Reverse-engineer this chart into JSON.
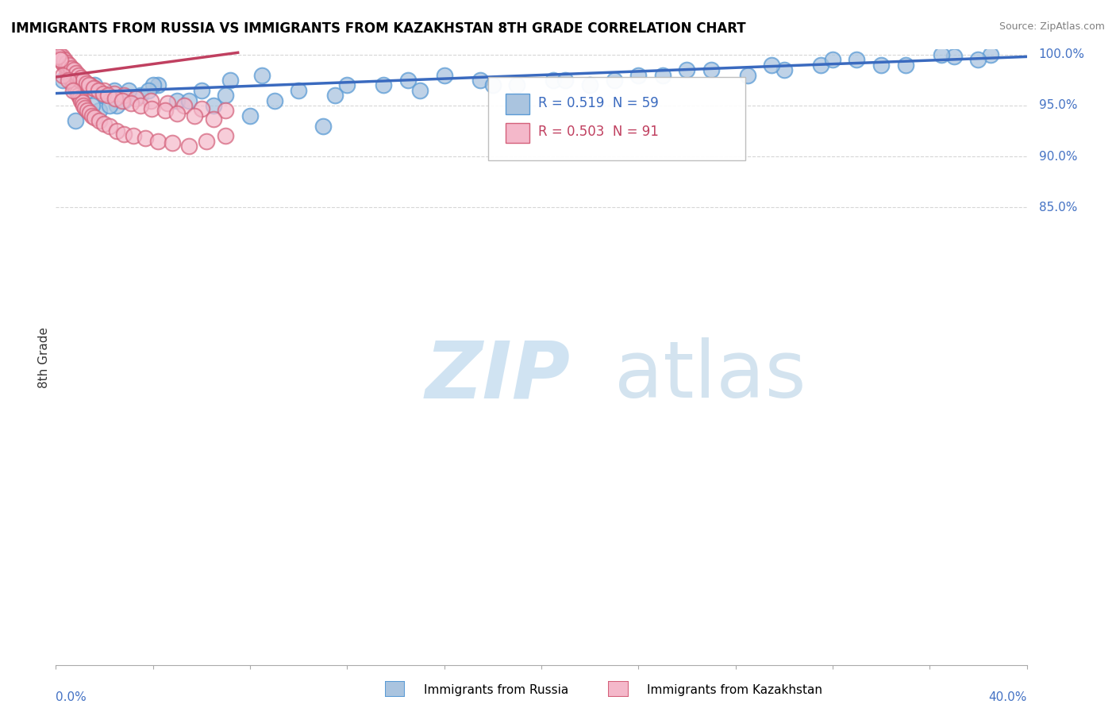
{
  "title": "IMMIGRANTS FROM RUSSIA VS IMMIGRANTS FROM KAZAKHSTAN 8TH GRADE CORRELATION CHART",
  "source": "Source: ZipAtlas.com",
  "ylabel": "8th Grade",
  "legend_blue": "Immigrants from Russia",
  "legend_pink": "Immigrants from Kazakhstan",
  "R_blue": 0.519,
  "N_blue": 59,
  "R_pink": 0.503,
  "N_pink": 91,
  "blue_color": "#aac4df",
  "blue_edge": "#5b9bd5",
  "pink_color": "#f4b8ca",
  "pink_edge": "#d4607a",
  "trendline_blue": "#3a6abf",
  "trendline_pink": "#c04060",
  "watermark_zip_color": "#c8dff0",
  "watermark_atlas_color": "#a8c8e0",
  "xmin": 0.0,
  "xmax": 40.0,
  "ymin": 40.0,
  "ymax": 100.5,
  "yticks": [
    85.0,
    90.0,
    95.0,
    100.0
  ],
  "background_color": "#ffffff",
  "grid_color": "#cccccc",
  "blue_scatter_x": [
    0.3,
    0.5,
    0.7,
    1.0,
    1.3,
    1.6,
    2.0,
    2.4,
    2.8,
    3.5,
    4.2,
    5.0,
    6.0,
    7.2,
    8.5,
    10.0,
    12.0,
    14.5,
    16.0,
    17.5,
    19.0,
    20.5,
    22.0,
    24.0,
    26.0,
    28.5,
    30.0,
    31.5,
    33.0,
    35.0,
    37.0,
    38.5,
    2.5,
    3.0,
    4.0,
    5.5,
    7.0,
    9.0,
    11.5,
    13.5,
    15.0,
    18.0,
    21.0,
    25.0,
    29.5,
    36.5,
    38.0,
    1.8,
    2.2,
    3.8,
    6.5,
    8.0,
    23.0,
    27.0,
    32.0,
    34.0,
    0.8,
    1.5,
    11.0
  ],
  "blue_scatter_y": [
    97.5,
    98.0,
    97.0,
    97.5,
    96.5,
    97.0,
    96.0,
    96.5,
    95.5,
    96.0,
    97.0,
    95.5,
    96.5,
    97.5,
    98.0,
    96.5,
    97.0,
    97.5,
    98.0,
    97.5,
    97.0,
    97.5,
    97.0,
    98.0,
    98.5,
    98.0,
    98.5,
    99.0,
    99.5,
    99.0,
    99.8,
    100.0,
    95.0,
    96.5,
    97.0,
    95.5,
    96.0,
    95.5,
    96.0,
    97.0,
    96.5,
    97.0,
    97.5,
    98.0,
    99.0,
    100.0,
    99.5,
    94.5,
    95.0,
    96.5,
    95.0,
    94.0,
    97.5,
    98.5,
    99.5,
    99.0,
    93.5,
    95.0,
    93.0
  ],
  "pink_scatter_x": [
    0.1,
    0.15,
    0.2,
    0.25,
    0.3,
    0.35,
    0.4,
    0.45,
    0.5,
    0.55,
    0.6,
    0.65,
    0.7,
    0.75,
    0.8,
    0.85,
    0.9,
    0.95,
    1.0,
    1.05,
    1.1,
    1.15,
    1.2,
    1.3,
    1.4,
    1.5,
    1.6,
    1.8,
    2.0,
    2.2,
    2.5,
    2.8,
    3.2,
    3.7,
    4.2,
    4.8,
    5.5,
    6.2,
    7.0,
    0.2,
    0.3,
    0.4,
    0.5,
    0.6,
    0.7,
    0.8,
    0.9,
    1.0,
    1.2,
    1.4,
    1.6,
    2.0,
    2.4,
    2.8,
    3.3,
    3.9,
    4.6,
    5.3,
    6.0,
    7.0,
    0.15,
    0.25,
    0.35,
    0.45,
    0.55,
    0.65,
    0.75,
    0.85,
    0.95,
    1.05,
    1.15,
    1.25,
    1.35,
    1.55,
    1.75,
    1.95,
    2.15,
    2.45,
    2.75,
    3.1,
    3.5,
    3.95,
    4.5,
    5.0,
    5.7,
    6.5,
    0.1,
    0.2,
    0.3,
    0.5,
    0.7
  ],
  "pink_scatter_y": [
    100.0,
    99.8,
    99.7,
    99.5,
    99.3,
    99.0,
    98.8,
    98.5,
    98.3,
    98.0,
    97.8,
    97.5,
    97.3,
    97.0,
    96.8,
    96.5,
    96.3,
    96.0,
    95.8,
    95.5,
    95.3,
    95.0,
    94.8,
    94.5,
    94.3,
    94.0,
    93.8,
    93.5,
    93.2,
    93.0,
    92.5,
    92.2,
    92.0,
    91.8,
    91.5,
    91.3,
    91.0,
    91.5,
    92.0,
    99.5,
    99.2,
    99.0,
    98.7,
    98.5,
    98.2,
    98.0,
    97.7,
    97.5,
    97.2,
    97.0,
    96.7,
    96.5,
    96.2,
    96.0,
    95.7,
    95.5,
    95.2,
    95.0,
    94.7,
    94.5,
    100.0,
    99.8,
    99.5,
    99.2,
    99.0,
    98.7,
    98.5,
    98.2,
    98.0,
    97.7,
    97.5,
    97.2,
    97.0,
    96.7,
    96.5,
    96.2,
    96.0,
    95.7,
    95.5,
    95.2,
    95.0,
    94.7,
    94.5,
    94.2,
    94.0,
    93.7,
    99.8,
    99.5,
    98.0,
    97.5,
    96.5
  ],
  "trendline_blue_x0": 0.0,
  "trendline_blue_y0": 96.2,
  "trendline_blue_x1": 40.0,
  "trendline_blue_y1": 99.8,
  "trendline_pink_x0": 0.0,
  "trendline_pink_y0": 97.8,
  "trendline_pink_x1": 7.5,
  "trendline_pink_y1": 100.2
}
